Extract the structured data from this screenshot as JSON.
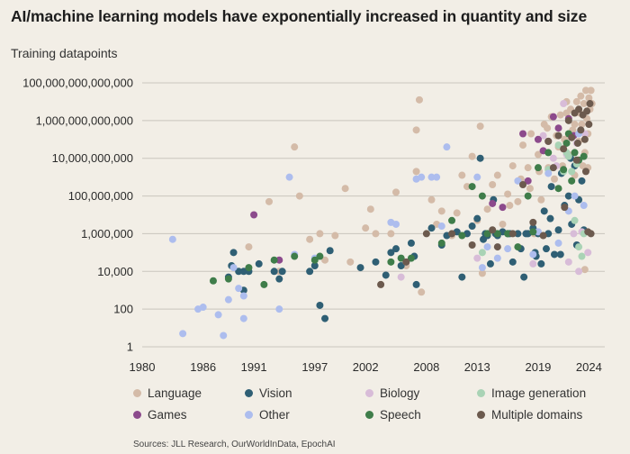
{
  "title": "AI/machine learning models have exponentially increased in quantity and size",
  "source": "Sources: JLL Research, OurWorldInData, EpochAI",
  "colors": {
    "background": "#f2eee6",
    "gridline": "#c9c5bd",
    "Language": "#d4bba8",
    "Vision": "#2f5f74",
    "Biology": "#d8bcd8",
    "Image generation": "#a9d3b5",
    "Games": "#8c4a8c",
    "Other": "#adbdee",
    "Speech": "#3f7d4a",
    "Multiple domains": "#6c5a4e"
  },
  "chart_data": {
    "type": "scatter",
    "title": "AI/machine learning models have exponentially increased in quantity and size",
    "xlabel": "",
    "ylabel": "Training datapoints",
    "xlim": [
      1980,
      2024.5
    ],
    "x_ticks": [
      1980,
      1986,
      1991,
      1997,
      2002,
      2008,
      2013,
      2019,
      2024
    ],
    "y_scale": "log10",
    "ylim_exp": [
      0,
      14
    ],
    "y_tick_labels": [
      "1",
      "100",
      "10,000",
      "1,000,000",
      "100,000,000",
      "10,000,000,000",
      "1,000,000,000,000",
      "100,000,000,000,000"
    ],
    "grid": "horizontal",
    "legend_position": "bottom",
    "series": [
      {
        "name": "Language",
        "points": [
          [
            1990.5,
            5.3
          ],
          [
            1992.5,
            7.7
          ],
          [
            1993.5,
            4.0
          ],
          [
            1995,
            10.6
          ],
          [
            1995.5,
            8.0
          ],
          [
            1996.5,
            5.7
          ],
          [
            1997.5,
            6.0
          ],
          [
            1998,
            4.6
          ],
          [
            1999,
            5.9
          ],
          [
            2000,
            8.4
          ],
          [
            2000.5,
            4.5
          ],
          [
            2002,
            6.3
          ],
          [
            2002.5,
            7.3
          ],
          [
            2003,
            6.0
          ],
          [
            2003.5,
            3.3
          ],
          [
            2004.5,
            6.0
          ],
          [
            2005,
            8.2
          ],
          [
            2006,
            4.3
          ],
          [
            2007,
            9.3
          ],
          [
            2007,
            11.5
          ],
          [
            2007.3,
            13.1
          ],
          [
            2007.5,
            2.9
          ],
          [
            2008.5,
            7.8
          ],
          [
            2009,
            6.5
          ],
          [
            2009.5,
            7.2
          ],
          [
            2010.5,
            5.9
          ],
          [
            2011,
            7.1
          ],
          [
            2011.5,
            9.1
          ],
          [
            2012,
            8.5
          ],
          [
            2012.5,
            10.1
          ],
          [
            2013,
            6.7
          ],
          [
            2013.3,
            11.7
          ],
          [
            2013.5,
            3.9
          ],
          [
            2014,
            7.3
          ],
          [
            2014.5,
            8.6
          ],
          [
            2015,
            9.1
          ],
          [
            2015.5,
            6.5
          ],
          [
            2016,
            8.1
          ],
          [
            2016.5,
            9.6
          ],
          [
            2017,
            7.7
          ],
          [
            2017.5,
            10.7
          ],
          [
            2018,
            9.5
          ],
          [
            2018.3,
            11.3
          ],
          [
            2018.6,
            6.0
          ],
          [
            2019,
            10.2
          ],
          [
            2019.3,
            7.8
          ],
          [
            2019.6,
            11.8
          ],
          [
            2020,
            9.5
          ],
          [
            2020.3,
            12.2
          ],
          [
            2020.6,
            8.9
          ],
          [
            2021,
            10.6
          ],
          [
            2021.2,
            12.3
          ],
          [
            2021.4,
            9.6
          ],
          [
            2021.6,
            11.0
          ],
          [
            2021.8,
            13.0
          ],
          [
            2022,
            10.2
          ],
          [
            2022.2,
            12.6
          ],
          [
            2022.4,
            11.5
          ],
          [
            2022.6,
            9.1
          ],
          [
            2022.8,
            13.0
          ],
          [
            2023,
            10.9
          ],
          [
            2023.1,
            12.4
          ],
          [
            2023.2,
            13.3
          ],
          [
            2023.3,
            11.8
          ],
          [
            2023.4,
            9.6
          ],
          [
            2023.5,
            12.9
          ],
          [
            2023.6,
            10.3
          ],
          [
            2023.7,
            13.6
          ],
          [
            2023.8,
            12.1
          ],
          [
            2023.9,
            11.3
          ],
          [
            2024,
            13.2
          ],
          [
            2024.1,
            12.6
          ],
          [
            2024.2,
            13.6
          ],
          [
            2024.3,
            12.9
          ],
          [
            2023.6,
            4.1
          ],
          [
            2023.9,
            9.5
          ],
          [
            2022.6,
            11.8
          ],
          [
            2021.8,
            12.4
          ],
          [
            2020.8,
            11.2
          ],
          [
            2019.9,
            11.6
          ],
          [
            2019.1,
            9.3
          ],
          [
            2018.2,
            8.4
          ],
          [
            2017.3,
            8.9
          ],
          [
            2016.2,
            7.5
          ]
        ]
      },
      {
        "name": "Vision",
        "points": [
          [
            1988.5,
            3.7
          ],
          [
            1988.8,
            4.3
          ],
          [
            1989,
            5.0
          ],
          [
            1989.5,
            4.0
          ],
          [
            1990,
            4.0
          ],
          [
            1990,
            3.0
          ],
          [
            1990.5,
            4.0
          ],
          [
            1991.5,
            4.4
          ],
          [
            1993,
            4.0
          ],
          [
            1993.5,
            3.6
          ],
          [
            1993.8,
            4.0
          ],
          [
            1996.5,
            4.0
          ],
          [
            1997,
            4.3
          ],
          [
            1997.5,
            2.2
          ],
          [
            1998,
            1.5
          ],
          [
            1998.5,
            5.1
          ],
          [
            2001.5,
            4.2
          ],
          [
            2003,
            4.5
          ],
          [
            2004,
            3.8
          ],
          [
            2004.5,
            5.0
          ],
          [
            2005,
            5.2
          ],
          [
            2005.5,
            4.3
          ],
          [
            2006.5,
            5.5
          ],
          [
            2006.8,
            4.8
          ],
          [
            2007,
            3.3
          ],
          [
            2008.5,
            6.3
          ],
          [
            2009.5,
            5.4
          ],
          [
            2010,
            5.9
          ],
          [
            2011,
            6.1
          ],
          [
            2011.5,
            3.7
          ],
          [
            2012,
            6.0
          ],
          [
            2012.5,
            6.4
          ],
          [
            2013,
            6.8
          ],
          [
            2013.3,
            10.0
          ],
          [
            2013.6,
            5.7
          ],
          [
            2014,
            5.9
          ],
          [
            2014.3,
            4.4
          ],
          [
            2014.6,
            7.8
          ],
          [
            2015,
            5.9
          ],
          [
            2015.5,
            6.1
          ],
          [
            2016,
            6.0
          ],
          [
            2016.5,
            4.5
          ],
          [
            2017,
            6.0
          ],
          [
            2017.3,
            5.2
          ],
          [
            2017.6,
            3.7
          ],
          [
            2018,
            6.0
          ],
          [
            2018.5,
            6.3
          ],
          [
            2018.7,
            5.0
          ],
          [
            2019,
            6.0
          ],
          [
            2019.3,
            4.4
          ],
          [
            2019.6,
            7.2
          ],
          [
            2020,
            6.0
          ],
          [
            2020.3,
            8.5
          ],
          [
            2020.6,
            4.9
          ],
          [
            2021,
            6.2
          ],
          [
            2021.3,
            9.2
          ],
          [
            2021.6,
            7.5
          ],
          [
            2022,
            8.0
          ],
          [
            2022.3,
            6.5
          ],
          [
            2022.6,
            9.6
          ],
          [
            2023,
            7.8
          ],
          [
            2023.3,
            8.8
          ],
          [
            2023.5,
            6.2
          ],
          [
            2022.8,
            5.4
          ],
          [
            2020.2,
            6.8
          ],
          [
            2013.8,
            6.0
          ],
          [
            2014.8,
            6.0
          ],
          [
            2016.2,
            6.0
          ],
          [
            2017.8,
            6.0
          ],
          [
            2018.8,
            4.8
          ],
          [
            2019.8,
            5.2
          ],
          [
            2021.2,
            4.9
          ],
          [
            2022.2,
            10.0
          ]
        ]
      },
      {
        "name": "Biology",
        "points": [
          [
            2005.5,
            3.7
          ],
          [
            2013,
            4.7
          ],
          [
            2018.5,
            4.4
          ],
          [
            2019.5,
            11.2
          ],
          [
            2020.5,
            10.0
          ],
          [
            2021.5,
            12.9
          ],
          [
            2022,
            4.5
          ],
          [
            2022.5,
            6.0
          ],
          [
            2022.8,
            10.8
          ],
          [
            2023,
            4.0
          ],
          [
            2023.3,
            6.1
          ],
          [
            2023.6,
            11.3
          ],
          [
            2023.9,
            5.0
          ],
          [
            2021.8,
            10.2
          ],
          [
            2020.8,
            9.6
          ]
        ]
      },
      {
        "name": "Image generation",
        "points": [
          [
            2013.5,
            5.0
          ],
          [
            2020,
            9.4
          ],
          [
            2021,
            10.7
          ],
          [
            2021.5,
            9.3
          ],
          [
            2022,
            10.1
          ],
          [
            2022.3,
            9.3
          ],
          [
            2022.6,
            6.7
          ],
          [
            2023,
            5.3
          ],
          [
            2023.3,
            4.8
          ],
          [
            2023.5,
            6.0
          ],
          [
            2021.8,
            10.3
          ],
          [
            2022.8,
            9.7
          ]
        ]
      },
      {
        "name": "Games",
        "points": [
          [
            1991,
            7.0
          ],
          [
            1993.5,
            4.6
          ],
          [
            2014.5,
            7.6
          ],
          [
            2015.5,
            7.4
          ],
          [
            2017.5,
            11.3
          ],
          [
            2018,
            8.8
          ],
          [
            2019,
            11.0
          ],
          [
            2019.5,
            10.4
          ],
          [
            2020,
            10.9
          ],
          [
            2020.5,
            12.2
          ],
          [
            2021,
            11.6
          ],
          [
            2022,
            12.1
          ],
          [
            2022.5,
            11.2
          ]
        ]
      },
      {
        "name": "Other",
        "points": [
          [
            1983,
            5.7
          ],
          [
            1984,
            0.7
          ],
          [
            1985.5,
            2.0
          ],
          [
            1986,
            2.1
          ],
          [
            1987.5,
            1.7
          ],
          [
            1988,
            0.6
          ],
          [
            1988.5,
            2.5
          ],
          [
            1989,
            4.2
          ],
          [
            1989.5,
            3.1
          ],
          [
            1990,
            2.7
          ],
          [
            1990,
            1.5
          ],
          [
            1993.5,
            2.0
          ],
          [
            1994.5,
            9.0
          ],
          [
            1995,
            4.9
          ],
          [
            1997,
            4.7
          ],
          [
            2004.5,
            6.6
          ],
          [
            2005,
            6.5
          ],
          [
            2006,
            4.5
          ],
          [
            2007,
            8.9
          ],
          [
            2007.5,
            9.0
          ],
          [
            2008.5,
            9.0
          ],
          [
            2009,
            9.0
          ],
          [
            2009.5,
            6.4
          ],
          [
            2010,
            10.6
          ],
          [
            2013,
            9.0
          ],
          [
            2013.5,
            4.2
          ],
          [
            2014,
            5.3
          ],
          [
            2015,
            4.7
          ],
          [
            2016,
            5.2
          ],
          [
            2017,
            8.8
          ],
          [
            2018.5,
            4.9
          ],
          [
            2019,
            6.1
          ],
          [
            2020,
            9.2
          ],
          [
            2021,
            5.5
          ],
          [
            2022,
            7.2
          ],
          [
            2023,
            11.3
          ],
          [
            2023.5,
            7.5
          ],
          [
            2022.6,
            8.0
          ]
        ]
      },
      {
        "name": "Speech",
        "points": [
          [
            1987,
            3.5
          ],
          [
            1988.5,
            3.6
          ],
          [
            1990.5,
            4.2
          ],
          [
            1992,
            3.3
          ],
          [
            1993,
            4.6
          ],
          [
            1995,
            4.8
          ],
          [
            1997,
            4.6
          ],
          [
            1997.5,
            4.8
          ],
          [
            2004.5,
            4.5
          ],
          [
            2005.5,
            4.7
          ],
          [
            2006.5,
            4.7
          ],
          [
            2009.5,
            5.5
          ],
          [
            2010.5,
            6.7
          ],
          [
            2011.5,
            5.9
          ],
          [
            2012.5,
            8.5
          ],
          [
            2013.5,
            8.0
          ],
          [
            2014,
            6.0
          ],
          [
            2015,
            6.0
          ],
          [
            2016,
            6.0
          ],
          [
            2017,
            5.3
          ],
          [
            2018,
            8.0
          ],
          [
            2018.5,
            6.1
          ],
          [
            2019,
            9.5
          ],
          [
            2020,
            10.3
          ],
          [
            2021,
            8.4
          ],
          [
            2021.5,
            9.4
          ],
          [
            2022,
            11.3
          ],
          [
            2022.3,
            8.8
          ],
          [
            2022.6,
            10.3
          ],
          [
            2023,
            9.9
          ],
          [
            2023.5,
            10.1
          ],
          [
            2021.8,
            10.8
          ]
        ]
      },
      {
        "name": "Multiple domains",
        "points": [
          [
            2003.5,
            3.3
          ],
          [
            2006,
            4.5
          ],
          [
            2008,
            6.0
          ],
          [
            2010.5,
            6.0
          ],
          [
            2012.5,
            5.4
          ],
          [
            2014.5,
            6.2
          ],
          [
            2015,
            5.3
          ],
          [
            2016.5,
            6.0
          ],
          [
            2017.5,
            8.6
          ],
          [
            2018.5,
            6.6
          ],
          [
            2019.5,
            5.9
          ],
          [
            2020,
            10.9
          ],
          [
            2020.5,
            9.5
          ],
          [
            2021,
            11.2
          ],
          [
            2021.5,
            10.5
          ],
          [
            2022,
            12.0
          ],
          [
            2022.3,
            11.1
          ],
          [
            2022.6,
            12.4
          ],
          [
            2022.9,
            10.8
          ],
          [
            2023,
            12.6
          ],
          [
            2023.2,
            11.5
          ],
          [
            2023.4,
            12.3
          ],
          [
            2023.6,
            11.0
          ],
          [
            2023.8,
            12.5
          ],
          [
            2024,
            11.8
          ],
          [
            2024.2,
            6.0
          ],
          [
            2023.7,
            9.3
          ],
          [
            2022.8,
            9.9
          ],
          [
            2021.6,
            7.4
          ],
          [
            2024.1,
            12.9
          ],
          [
            2023.9,
            6.1
          ]
        ]
      }
    ]
  }
}
